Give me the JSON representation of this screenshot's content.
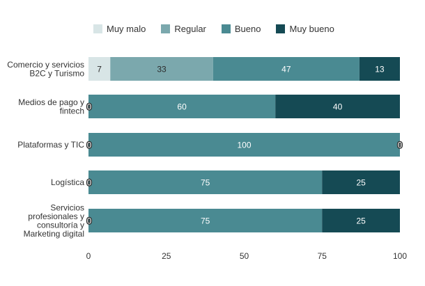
{
  "colors": {
    "muy_malo": "#d8e5e6",
    "regular": "#7ba8ad",
    "bueno": "#4a8a92",
    "muy_bueno": "#154a54"
  },
  "chart_data": {
    "type": "bar",
    "orientation": "horizontal",
    "stacked": true,
    "categories": [
      [
        "Comercio y servicios",
        "B2C y Turismo"
      ],
      [
        "Medios de pago y",
        "fintech"
      ],
      [
        "Plataformas y TIC"
      ],
      [
        "Logística"
      ],
      [
        "Servicios",
        "profesionales y",
        "consultoría y",
        "Marketing digital"
      ]
    ],
    "series": [
      {
        "name": "Muy malo",
        "color_key": "muy_malo",
        "values": [
          7,
          0,
          0,
          0,
          0
        ]
      },
      {
        "name": "Regular",
        "color_key": "regular",
        "values": [
          33,
          0,
          0,
          0,
          0
        ]
      },
      {
        "name": "Bueno",
        "color_key": "bueno",
        "values": [
          47,
          60,
          100,
          75,
          75
        ]
      },
      {
        "name": "Muy bueno",
        "color_key": "muy_bueno",
        "values": [
          13,
          40,
          0,
          25,
          25
        ]
      }
    ],
    "xlim": [
      0,
      100
    ],
    "xticks": [
      "0",
      "25",
      "50",
      "75",
      "100"
    ],
    "legend_position": "top"
  }
}
